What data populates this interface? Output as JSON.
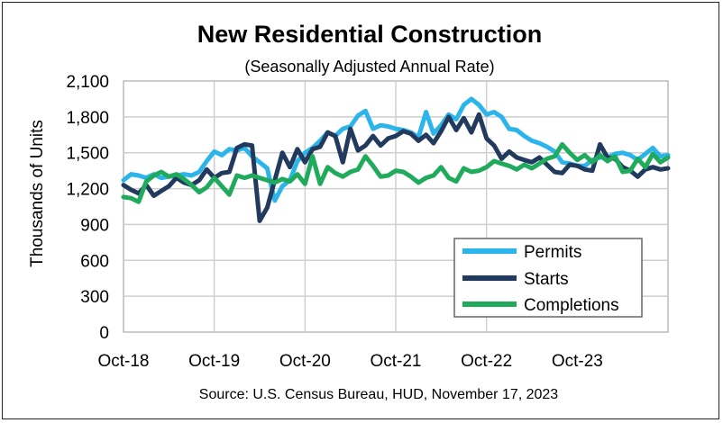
{
  "chart_data": {
    "type": "line",
    "title": "New Residential Construction",
    "subtitle": "(Seasonally Adjusted Annual Rate)",
    "ylabel": "Thousands of Units",
    "xlabel": "",
    "source": "Source:  U.S. Census Bureau, HUD, November 17, 2023",
    "x_start": "2018-10",
    "x_tick_labels": [
      "Oct-18",
      "Oct-19",
      "Oct-20",
      "Oct-21",
      "Oct-22",
      "Oct-23"
    ],
    "y_tick_labels": [
      "0",
      "300",
      "600",
      "900",
      "1,200",
      "1,500",
      "1,800",
      "2,100"
    ],
    "ylim": [
      0,
      2100
    ],
    "grid": true,
    "legend_position": "bottom-right",
    "series": [
      {
        "name": "Permits",
        "color": "#2BB5EA",
        "values": [
          1270,
          1320,
          1310,
          1290,
          1320,
          1290,
          1300,
          1310,
          1320,
          1310,
          1340,
          1430,
          1510,
          1480,
          1530,
          1520,
          1540,
          1470,
          1420,
          1370,
          1100,
          1220,
          1270,
          1430,
          1500,
          1540,
          1600,
          1670,
          1640,
          1700,
          1720,
          1810,
          1850,
          1700,
          1730,
          1720,
          1700,
          1690,
          1670,
          1630,
          1840,
          1660,
          1730,
          1820,
          1780,
          1900,
          1950,
          1900,
          1820,
          1840,
          1800,
          1700,
          1690,
          1640,
          1600,
          1580,
          1550,
          1510,
          1420,
          1410,
          1390,
          1390,
          1440,
          1460,
          1460,
          1490,
          1500,
          1480,
          1440,
          1490,
          1540,
          1470,
          1480
        ]
      },
      {
        "name": "Starts",
        "color": "#223A5E",
        "values": [
          1230,
          1190,
          1160,
          1230,
          1140,
          1180,
          1220,
          1290,
          1250,
          1230,
          1270,
          1360,
          1290,
          1330,
          1340,
          1540,
          1570,
          1560,
          930,
          1040,
          1270,
          1500,
          1380,
          1530,
          1420,
          1530,
          1550,
          1670,
          1640,
          1420,
          1700,
          1520,
          1560,
          1640,
          1560,
          1620,
          1640,
          1680,
          1660,
          1600,
          1650,
          1580,
          1680,
          1800,
          1690,
          1790,
          1670,
          1820,
          1620,
          1560,
          1450,
          1510,
          1460,
          1440,
          1420,
          1460,
          1400,
          1340,
          1330,
          1400,
          1390,
          1360,
          1350,
          1570,
          1460,
          1450,
          1380,
          1350,
          1300,
          1360,
          1380,
          1360,
          1370
        ]
      },
      {
        "name": "Completions",
        "color": "#1FAB5B",
        "values": [
          1130,
          1120,
          1090,
          1260,
          1310,
          1340,
          1300,
          1320,
          1280,
          1230,
          1170,
          1210,
          1290,
          1220,
          1150,
          1310,
          1290,
          1310,
          1290,
          1270,
          1250,
          1280,
          1260,
          1320,
          1240,
          1470,
          1240,
          1380,
          1330,
          1300,
          1340,
          1360,
          1470,
          1390,
          1300,
          1310,
          1350,
          1340,
          1300,
          1250,
          1290,
          1310,
          1380,
          1290,
          1260,
          1370,
          1340,
          1350,
          1380,
          1430,
          1410,
          1390,
          1360,
          1400,
          1370,
          1410,
          1450,
          1470,
          1570,
          1500,
          1440,
          1480,
          1420,
          1480,
          1430,
          1470,
          1340,
          1350,
          1450,
          1380,
          1490,
          1420,
          1460
        ]
      }
    ]
  }
}
